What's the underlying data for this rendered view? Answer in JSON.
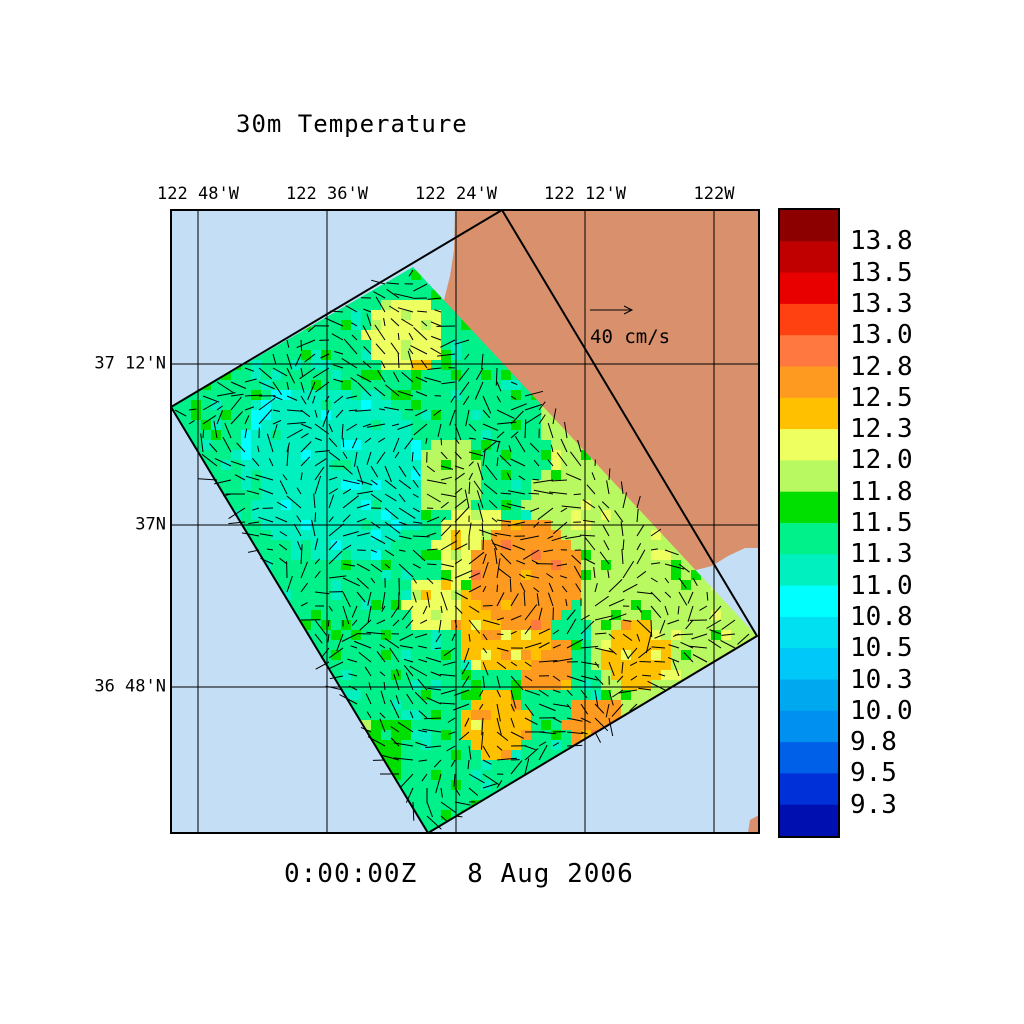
{
  "map": {
    "title": "30m Temperature",
    "time_label": "0:00:00Z   8 Aug 2006",
    "lon_labels": [
      "122 48'W",
      "122 36'W",
      "122 24'W",
      "122 12'W",
      "122W"
    ],
    "lat_labels": [
      "37 12'N",
      "37N",
      "36 48'N"
    ],
    "reference_vector_label": "40 cm/s",
    "colors": {
      "ocean": "#c3def5",
      "land": "#d9906d",
      "grid": "#000000"
    }
  },
  "colorbar": {
    "labels": [
      "13.8",
      "13.5",
      "13.3",
      "13.0",
      "12.8",
      "12.5",
      "12.3",
      "12.0",
      "11.8",
      "11.5",
      "11.3",
      "11.0",
      "10.8",
      "10.5",
      "10.3",
      "10.0",
      "9.8",
      "9.5",
      "9.3"
    ],
    "colors": [
      "#8c0000",
      "#c00000",
      "#e80000",
      "#ff4010",
      "#ff7840",
      "#ff9a20",
      "#ffc000",
      "#eeff60",
      "#b8f860",
      "#00e000",
      "#00f08a",
      "#00f0c0",
      "#00ffff",
      "#00e0f0",
      "#00c8f8",
      "#00a8f0",
      "#0090f0",
      "#0060e8",
      "#0030d8",
      "#0010b0"
    ]
  }
}
